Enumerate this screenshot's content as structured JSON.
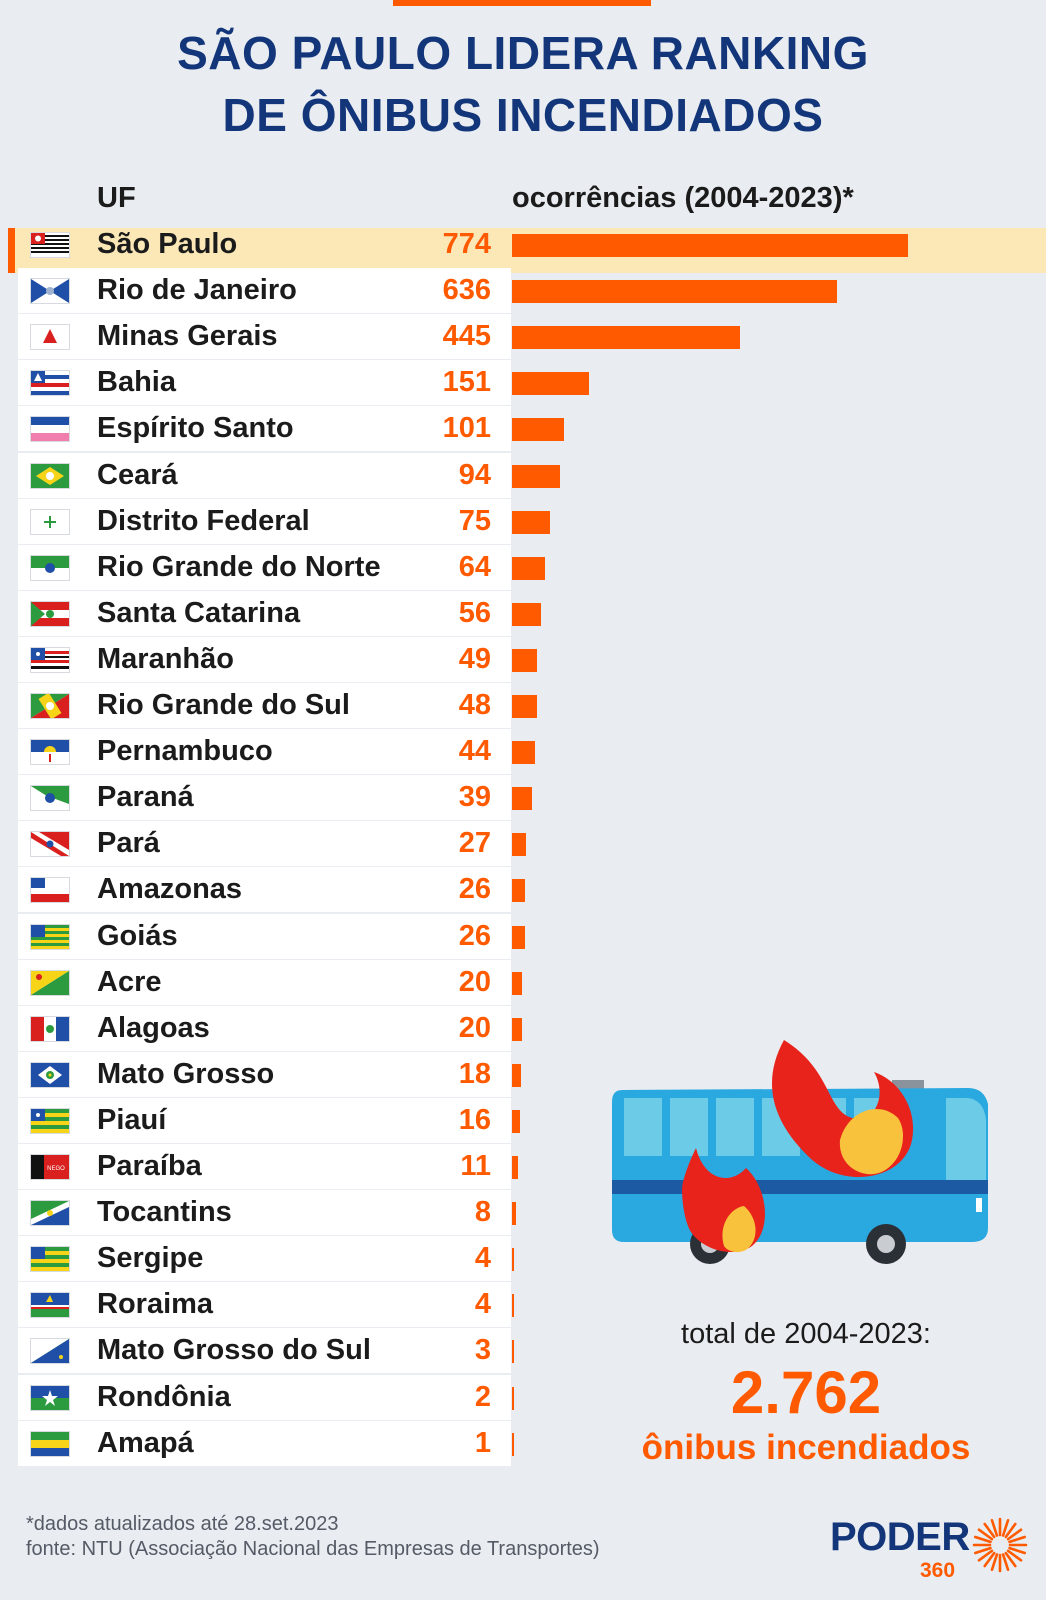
{
  "title": {
    "line1": "SÃO PAULO LIDERA RANKING",
    "line2": "DE ÔNIBUS INCENDIADOS"
  },
  "headers": {
    "uf": "UF",
    "occurrences": "ocorrências (2004-2023)*"
  },
  "colors": {
    "accent": "#ff5a00",
    "title": "#13367a",
    "highlight": "#fbe8b6",
    "row_bg": "#ffffff",
    "background": "#e9ecf0"
  },
  "chart_data": {
    "type": "bar",
    "orientation": "horizontal",
    "title": "SÃO PAULO LIDERA RANKING DE ÔNIBUS INCENDIADOS",
    "xlabel": "ocorrências (2004-2023)*",
    "ylabel": "UF",
    "xlim": [
      0,
      774
    ],
    "categories": [
      "São Paulo",
      "Rio de Janeiro",
      "Minas Gerais",
      "Bahia",
      "Espírito Santo",
      "Ceará",
      "Distrito Federal",
      "Rio Grande do Norte",
      "Santa Catarina",
      "Maranhão",
      "Rio Grande do Sul",
      "Pernambuco",
      "Paraná",
      "Pará",
      "Amazonas",
      "Goiás",
      "Acre",
      "Alagoas",
      "Mato Grosso",
      "Piauí",
      "Paraíba",
      "Tocantins",
      "Sergipe",
      "Roraima",
      "Mato Grosso do Sul",
      "Rondônia",
      "Amapá"
    ],
    "values": [
      774,
      636,
      445,
      151,
      101,
      94,
      75,
      64,
      56,
      49,
      48,
      44,
      39,
      27,
      26,
      26,
      20,
      20,
      18,
      16,
      11,
      8,
      4,
      4,
      3,
      2,
      1
    ],
    "highlight": "São Paulo"
  },
  "flags": [
    "sp",
    "rj",
    "mg",
    "ba",
    "es",
    "ce",
    "df",
    "rn",
    "sc",
    "ma",
    "rs",
    "pe",
    "pr",
    "pa",
    "am",
    "go",
    "ac",
    "al",
    "mt",
    "pi",
    "pb",
    "to",
    "se",
    "rr",
    "ms",
    "ro",
    "ap"
  ],
  "total": {
    "label": "total de 2004-2023:",
    "value": "2.762",
    "unit": "ônibus incendiados"
  },
  "footer": {
    "note": "*dados atualizados até 28.set.2023",
    "source": "fonte: NTU (Associação Nacional das Empresas de Transportes)"
  },
  "logo": {
    "word": "PODER",
    "number": "360"
  }
}
